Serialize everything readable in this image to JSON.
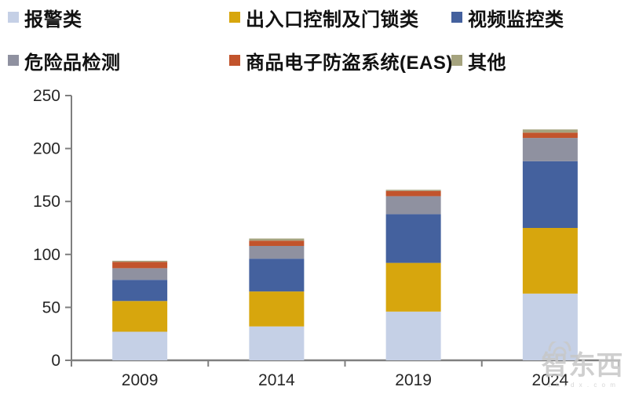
{
  "legend": {
    "items": [
      {
        "label": "报警类",
        "color": "#c5d0e6"
      },
      {
        "label": "出入口控制及门锁类",
        "color": "#d7a60d"
      },
      {
        "label": "视频监控类",
        "color": "#44619e"
      },
      {
        "label": "危险品检测",
        "color": "#8f91a0"
      },
      {
        "label": "商品电子防盗系统(EAS)",
        "color": "#c2542c"
      },
      {
        "label": "其他",
        "color": "#a5a37e"
      }
    ]
  },
  "chart_data": {
    "type": "bar",
    "stacked": true,
    "title": "",
    "xlabel": "",
    "ylabel": "",
    "categories": [
      "2009",
      "2014",
      "2019",
      "2024"
    ],
    "series": [
      {
        "name": "报警类",
        "color": "#c5d0e6",
        "values": [
          27,
          32,
          46,
          63
        ]
      },
      {
        "name": "出入口控制及门锁类",
        "color": "#d7a60d",
        "values": [
          29,
          33,
          46,
          62
        ]
      },
      {
        "name": "视频监控类",
        "color": "#44619e",
        "values": [
          20,
          31,
          46,
          63
        ]
      },
      {
        "name": "危险品检测",
        "color": "#8f91a0",
        "values": [
          11,
          12,
          17,
          22
        ]
      },
      {
        "name": "商品电子防盗系统(EAS)",
        "color": "#c2542c",
        "values": [
          6,
          5,
          5,
          5
        ]
      },
      {
        "name": "其他",
        "color": "#a5a37e",
        "values": [
          1,
          2,
          1,
          3
        ]
      }
    ],
    "totals": [
      94,
      115,
      161,
      218
    ],
    "ylim": [
      0,
      250
    ],
    "yticks": [
      "0",
      "50",
      "100",
      "150",
      "200",
      "250"
    ],
    "grid": false,
    "legend_position": "top",
    "axis_color": "#7f7f7f",
    "tick_label_color": "#262626"
  },
  "watermark": {
    "text": "智东西",
    "subtext": "z h i d x . c o m",
    "icon": "wifi-arcs-icon",
    "color": "#c7c7c7"
  }
}
